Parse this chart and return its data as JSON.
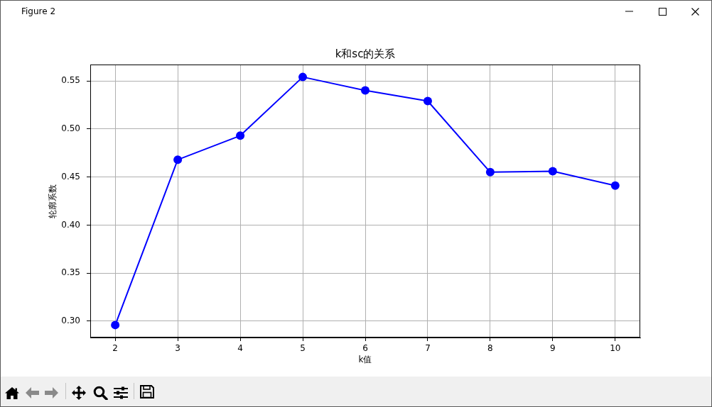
{
  "chart_data": {
    "type": "line",
    "title": "k和sc的关系",
    "xlabel": "k值",
    "ylabel": "轮廓系数",
    "annotations": [
      "Figure 2"
    ],
    "x": [
      2,
      3,
      4,
      5,
      6,
      7,
      8,
      9,
      10
    ],
    "series": [
      {
        "color": "#0000ff",
        "values": [
          0.296,
          0.468,
          0.493,
          0.554,
          0.54,
          0.529,
          0.455,
          0.456,
          0.441
        ]
      }
    ],
    "xlim": [
      1.6,
      10.4
    ],
    "xticks": [
      2,
      3,
      4,
      5,
      6,
      7,
      8,
      9,
      10
    ],
    "ylim": [
      0.283,
      0.567
    ],
    "yticks": [
      {
        "value": 0.3,
        "label": "0.30"
      },
      {
        "value": 0.35,
        "label": "0.35"
      },
      {
        "value": 0.4,
        "label": "0.40"
      },
      {
        "value": 0.45,
        "label": "0.45"
      },
      {
        "value": 0.5,
        "label": "0.50"
      },
      {
        "value": 0.55,
        "label": "0.55"
      }
    ],
    "grid": true,
    "marker": "circle",
    "line_style": "solid"
  }
}
